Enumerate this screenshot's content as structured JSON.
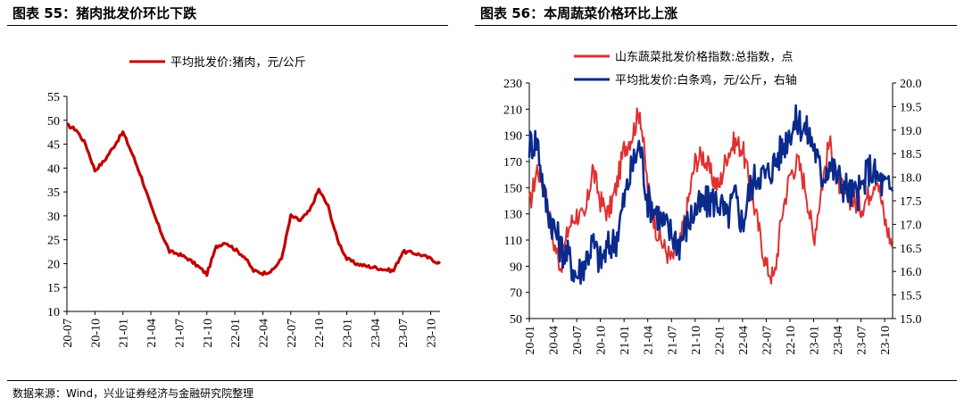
{
  "left": {
    "title": "图表 55：猪肉批发价环比下跌",
    "chart_data": {
      "type": "line",
      "title": "图表 55：猪肉批发价环比下跌",
      "xlabel": "",
      "ylabel": "",
      "ylim": [
        10,
        55
      ],
      "yticks": [
        10,
        15,
        20,
        25,
        30,
        35,
        40,
        45,
        50,
        55
      ],
      "xticks": [
        "20-07",
        "20-10",
        "21-01",
        "21-04",
        "21-07",
        "21-10",
        "22-01",
        "22-04",
        "22-07",
        "22-10",
        "23-01",
        "23-04",
        "23-07",
        "23-10"
      ],
      "legend": "top-center",
      "grid": false,
      "series": [
        {
          "name": "平均批发价:猪肉，元/公斤",
          "color": "#c00000",
          "x": [
            "20-07",
            "20-08",
            "20-09",
            "20-10",
            "20-11",
            "20-12",
            "21-01",
            "21-02",
            "21-03",
            "21-04",
            "21-05",
            "21-06",
            "21-07",
            "21-08",
            "21-09",
            "21-10",
            "21-11",
            "21-12",
            "22-01",
            "22-02",
            "22-03",
            "22-04",
            "22-05",
            "22-06",
            "22-07",
            "22-08",
            "22-09",
            "22-10",
            "22-11",
            "22-12",
            "23-01",
            "23-02",
            "23-03",
            "23-04",
            "23-05",
            "23-06",
            "23-07",
            "23-08",
            "23-09",
            "23-10",
            "23-11"
          ],
          "values": [
            49,
            48,
            45,
            39.5,
            41.5,
            44.5,
            47.5,
            43,
            38,
            32,
            27,
            22.5,
            22,
            21,
            19.5,
            17.8,
            23.5,
            24.5,
            23,
            21.5,
            18.5,
            18,
            18.5,
            21,
            30,
            29,
            31,
            35.5,
            32,
            25,
            21,
            20,
            19.5,
            19.2,
            18.8,
            18.5,
            22.5,
            22.3,
            21.8,
            21,
            20
          ]
        }
      ]
    }
  },
  "right": {
    "title": "图表 56：本周蔬菜价格环比上涨",
    "chart_data": {
      "type": "line",
      "title": "图表 56：本周蔬菜价格环比上涨",
      "xlabel": "",
      "ylabel": "",
      "ylim": [
        50,
        230
      ],
      "ylim_right": [
        15.0,
        20.0
      ],
      "yticks": [
        50,
        70,
        90,
        110,
        130,
        150,
        170,
        190,
        210,
        230
      ],
      "yticks_right": [
        "15.0",
        "15.5",
        "16.0",
        "16.5",
        "17.0",
        "17.5",
        "18.0",
        "18.5",
        "19.0",
        "19.5",
        "20.0"
      ],
      "xticks": [
        "20-01",
        "20-04",
        "20-07",
        "20-10",
        "21-01",
        "21-04",
        "21-07",
        "21-10",
        "22-01",
        "22-04",
        "22-07",
        "22-10",
        "23-01",
        "23-04",
        "23-07",
        "23-10"
      ],
      "legend": "top-right",
      "grid": false,
      "series": [
        {
          "name": "山东蔬菜批发价格指数:总指数，点",
          "axis": "left",
          "color": "#e03030",
          "x": [
            "20-01",
            "20-02",
            "20-03",
            "20-04",
            "20-05",
            "20-06",
            "20-07",
            "20-08",
            "20-09",
            "20-10",
            "20-11",
            "20-12",
            "21-01",
            "21-02",
            "21-03",
            "21-04",
            "21-05",
            "21-06",
            "21-07",
            "21-08",
            "21-09",
            "21-10",
            "21-11",
            "21-12",
            "22-01",
            "22-02",
            "22-03",
            "22-04",
            "22-05",
            "22-06",
            "22-07",
            "22-08",
            "22-09",
            "22-10",
            "22-11",
            "22-12",
            "23-01",
            "23-02",
            "23-03",
            "23-04",
            "23-05",
            "23-06",
            "23-07",
            "23-08",
            "23-09",
            "23-10",
            "23-11"
          ],
          "values": [
            135,
            165,
            150,
            110,
            90,
            120,
            130,
            125,
            165,
            140,
            130,
            150,
            180,
            190,
            210,
            150,
            120,
            105,
            95,
            105,
            135,
            170,
            175,
            160,
            150,
            175,
            185,
            180,
            150,
            120,
            90,
            80,
            130,
            160,
            170,
            150,
            110,
            150,
            185,
            155,
            145,
            140,
            135,
            145,
            160,
            125,
            105
          ]
        },
        {
          "name": "平均批发价:白条鸡，元/公斤，右轴",
          "axis": "right",
          "color": "#0a2a8c",
          "x": [
            "20-01",
            "20-02",
            "20-03",
            "20-04",
            "20-05",
            "20-06",
            "20-07",
            "20-08",
            "20-09",
            "20-10",
            "20-11",
            "20-12",
            "21-01",
            "21-02",
            "21-03",
            "21-04",
            "21-05",
            "21-06",
            "21-07",
            "21-08",
            "21-09",
            "21-10",
            "21-11",
            "21-12",
            "22-01",
            "22-02",
            "22-03",
            "22-04",
            "22-05",
            "22-06",
            "22-07",
            "22-08",
            "22-09",
            "22-10",
            "22-11",
            "22-12",
            "23-01",
            "23-02",
            "23-03",
            "23-04",
            "23-05",
            "23-06",
            "23-07",
            "23-08",
            "23-09",
            "23-10",
            "23-11"
          ],
          "values": [
            18.7,
            18.8,
            17.5,
            17.0,
            16.5,
            16.3,
            15.9,
            16.2,
            16.6,
            16.2,
            16.5,
            16.7,
            17.5,
            18.2,
            18.7,
            17.5,
            17.3,
            17.0,
            16.8,
            16.6,
            17.0,
            17.3,
            17.4,
            17.5,
            17.5,
            17.1,
            17.6,
            17.0,
            17.8,
            18.1,
            18.0,
            18.3,
            18.6,
            19.0,
            19.2,
            19.0,
            18.7,
            18.0,
            18.3,
            18.0,
            17.8,
            17.6,
            17.7,
            18.2,
            18.0,
            17.8,
            17.7
          ]
        }
      ]
    }
  },
  "footer": {
    "source": "数据来源：Wind，兴业证券经济与金融研究院整理"
  }
}
